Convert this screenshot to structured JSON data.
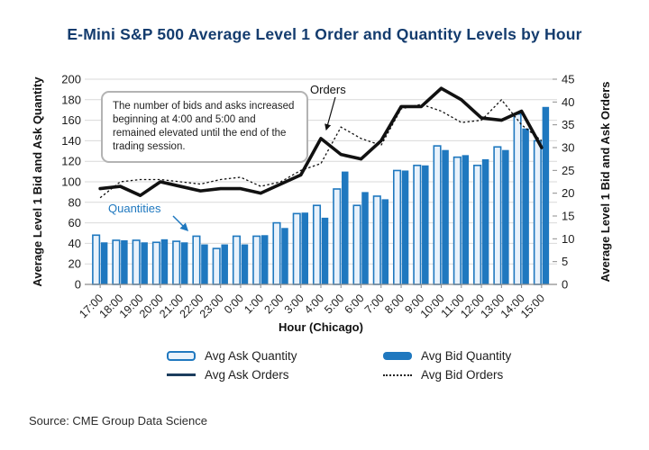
{
  "title": "E-Mini S&P 500 Average Level 1 Order and Quantity Levels by Hour",
  "source": "Source: CME Group Data Science",
  "annotation": {
    "text": "The number of bids and asks increased beginning at 4:00 and 5:00 and remained elevated until the end of the trading session."
  },
  "labels": {
    "orders": "Orders",
    "quantities": "Quantities"
  },
  "legend": [
    {
      "label": "Avg Ask Quantity",
      "swatch": "bar-outline"
    },
    {
      "label": "Avg Bid Quantity",
      "swatch": "bar-solid"
    },
    {
      "label": "Avg Ask Orders",
      "swatch": "line-solid"
    },
    {
      "label": "Avg Bid Orders",
      "swatch": "line-dotted"
    }
  ],
  "colors": {
    "brand_navy": "#143c6e",
    "bar_blue": "#1f78bf",
    "bar_light_fill": "#e9f2fb",
    "line_black": "#111111",
    "grid": "#d9d9d9",
    "axis": "#8c8c8c"
  },
  "chart_data": {
    "type": "bar",
    "subtype": "grouped-bars-with-two-lines",
    "categories": [
      "17:00",
      "18:00",
      "19:00",
      "20:00",
      "21:00",
      "22:00",
      "23:00",
      "0:00",
      "1:00",
      "2:00",
      "3:00",
      "4:00",
      "5:00",
      "6:00",
      "7:00",
      "8:00",
      "9:00",
      "10:00",
      "11:00",
      "12:00",
      "13:00",
      "14:00",
      "15:00"
    ],
    "series": [
      {
        "name": "Avg Ask Quantity",
        "type": "bar",
        "axis": "left",
        "values": [
          48,
          43,
          43,
          41,
          42,
          47,
          35,
          47,
          47,
          60,
          69,
          77,
          93,
          77,
          86,
          111,
          116,
          135,
          124,
          116,
          134,
          166,
          140
        ]
      },
      {
        "name": "Avg Bid Quantity",
        "type": "bar",
        "axis": "left",
        "values": [
          41,
          43,
          41,
          44,
          41,
          39,
          39,
          39,
          48,
          55,
          70,
          65,
          110,
          90,
          83,
          111,
          116,
          131,
          126,
          122,
          131,
          152,
          173
        ]
      },
      {
        "name": "Avg Ask Orders",
        "type": "line-solid",
        "axis": "right",
        "values": [
          21,
          21.5,
          19.5,
          22.5,
          21.5,
          20.5,
          21,
          21,
          20,
          22,
          24,
          32,
          28.5,
          27.5,
          31.5,
          39,
          39,
          43,
          40.5,
          36.5,
          36,
          38,
          30
        ]
      },
      {
        "name": "Avg Bid Orders",
        "type": "line-dotted",
        "axis": "right",
        "values": [
          19,
          22.5,
          23,
          23,
          22.5,
          22,
          23,
          23.5,
          21.5,
          22.5,
          25,
          26.5,
          34.5,
          32,
          30.5,
          38.5,
          39.5,
          38,
          35.5,
          36,
          40.5,
          35,
          31.5
        ]
      }
    ],
    "left_axis": {
      "label": "Average Level 1 Bid and Ask Quantity",
      "min": 0,
      "max": 200,
      "ticks": [
        0,
        20,
        40,
        60,
        80,
        100,
        120,
        140,
        160,
        180,
        200
      ]
    },
    "right_axis": {
      "label": "Average Level 1 Bid and Ask Orders",
      "min": 0,
      "max": 45,
      "ticks": [
        0,
        5,
        10,
        15,
        20,
        25,
        30,
        35,
        40,
        45
      ]
    },
    "xlabel": "Hour (Chicago)",
    "grid": "horizontal",
    "legend_position": "bottom"
  }
}
